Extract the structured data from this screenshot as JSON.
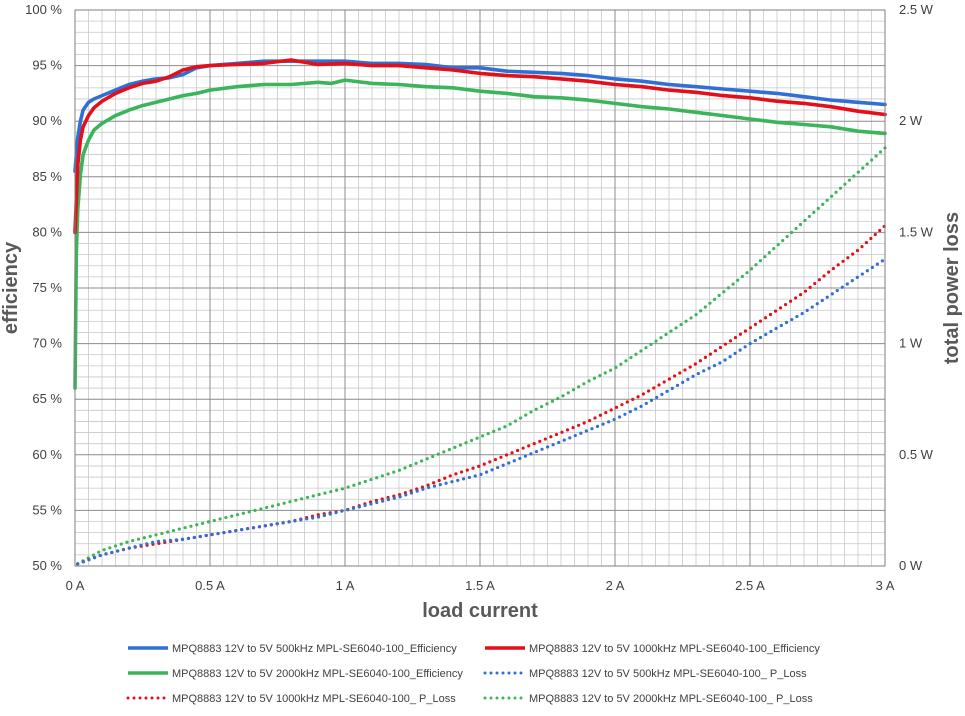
{
  "chart_data": {
    "type": "line",
    "title": "",
    "xlabel": "load current",
    "ylabel_left": "efficiency",
    "ylabel_right": "total power loss",
    "xlim": [
      0,
      3
    ],
    "ylim_left": [
      50,
      100
    ],
    "ylim_right": [
      0,
      2.5
    ],
    "grid": true,
    "legend_position": "bottom",
    "x_ticks": [
      {
        "value": 0,
        "label": "0 A"
      },
      {
        "value": 0.5,
        "label": "0.5 A"
      },
      {
        "value": 1,
        "label": "1 A"
      },
      {
        "value": 1.5,
        "label": "1.5 A"
      },
      {
        "value": 2,
        "label": "2 A"
      },
      {
        "value": 2.5,
        "label": "2.5 A"
      },
      {
        "value": 3,
        "label": "3 A"
      }
    ],
    "y_left_ticks": [
      {
        "value": 50,
        "label": "50 %"
      },
      {
        "value": 55,
        "label": "55 %"
      },
      {
        "value": 60,
        "label": "60 %"
      },
      {
        "value": 65,
        "label": "65 %"
      },
      {
        "value": 70,
        "label": "70 %"
      },
      {
        "value": 75,
        "label": "75 %"
      },
      {
        "value": 80,
        "label": "80 %"
      },
      {
        "value": 85,
        "label": "85 %"
      },
      {
        "value": 90,
        "label": "90 %"
      },
      {
        "value": 95,
        "label": "95 %"
      },
      {
        "value": 100,
        "label": "100 %"
      }
    ],
    "y_right_ticks": [
      {
        "value": 0,
        "label": "0 W"
      },
      {
        "value": 0.5,
        "label": "0.5 W"
      },
      {
        "value": 1,
        "label": "1 W"
      },
      {
        "value": 1.5,
        "label": "1.5 W"
      },
      {
        "value": 2,
        "label": "2 W"
      },
      {
        "value": 2.5,
        "label": "2.5 W"
      }
    ],
    "series": [
      {
        "name": "MPQ8883 12V to 5V 500kHz MPL-SE6040-100_Efficiency",
        "axis": "left",
        "color": "#2f6fd6",
        "style": "solid",
        "x": [
          0,
          0.01,
          0.02,
          0.03,
          0.05,
          0.07,
          0.1,
          0.15,
          0.2,
          0.25,
          0.3,
          0.35,
          0.4,
          0.45,
          0.5,
          0.6,
          0.7,
          0.8,
          0.9,
          1.0,
          1.1,
          1.2,
          1.3,
          1.4,
          1.5,
          1.6,
          1.7,
          1.8,
          1.9,
          2.0,
          2.1,
          2.2,
          2.3,
          2.4,
          2.5,
          2.6,
          2.7,
          2.8,
          2.9,
          3.0
        ],
        "y": [
          85.5,
          88.5,
          90.0,
          91.0,
          91.7,
          92.0,
          92.3,
          92.8,
          93.3,
          93.6,
          93.8,
          93.9,
          94.2,
          94.8,
          95.0,
          95.2,
          95.4,
          95.4,
          95.4,
          95.4,
          95.2,
          95.2,
          95.1,
          94.8,
          94.8,
          94.5,
          94.4,
          94.3,
          94.1,
          93.8,
          93.6,
          93.3,
          93.1,
          92.9,
          92.7,
          92.5,
          92.2,
          91.9,
          91.7,
          91.5
        ]
      },
      {
        "name": "MPQ8883 12V to 5V 1000kHz MPL-SE6040-100_Efficiency",
        "axis": "left",
        "color": "#e3101a",
        "style": "solid",
        "x": [
          0,
          0.01,
          0.02,
          0.03,
          0.05,
          0.07,
          0.1,
          0.15,
          0.2,
          0.25,
          0.3,
          0.35,
          0.4,
          0.45,
          0.5,
          0.6,
          0.7,
          0.8,
          0.9,
          1.0,
          1.1,
          1.2,
          1.3,
          1.4,
          1.5,
          1.6,
          1.7,
          1.8,
          1.9,
          2.0,
          2.1,
          2.2,
          2.3,
          2.4,
          2.5,
          2.6,
          2.7,
          2.8,
          2.9,
          3.0
        ],
        "y": [
          80.0,
          86.0,
          88.3,
          89.5,
          90.5,
          91.2,
          91.8,
          92.5,
          93.0,
          93.4,
          93.6,
          94.0,
          94.6,
          94.9,
          95.0,
          95.1,
          95.2,
          95.5,
          95.1,
          95.2,
          95.0,
          95.0,
          94.8,
          94.6,
          94.3,
          94.1,
          94.0,
          93.8,
          93.6,
          93.3,
          93.1,
          92.8,
          92.6,
          92.3,
          92.1,
          91.8,
          91.6,
          91.3,
          90.9,
          90.6
        ]
      },
      {
        "name": "MPQ8883 12V to 5V 2000kHz MPL-SE6040-100_Efficiency",
        "axis": "left",
        "color": "#3cb45c",
        "style": "solid",
        "x": [
          0,
          0.005,
          0.01,
          0.02,
          0.03,
          0.05,
          0.07,
          0.1,
          0.15,
          0.2,
          0.25,
          0.3,
          0.35,
          0.4,
          0.45,
          0.5,
          0.6,
          0.7,
          0.8,
          0.9,
          0.95,
          1.0,
          1.1,
          1.2,
          1.3,
          1.4,
          1.5,
          1.6,
          1.7,
          1.8,
          1.9,
          2.0,
          2.1,
          2.2,
          2.3,
          2.4,
          2.5,
          2.6,
          2.7,
          2.8,
          2.9,
          3.0
        ],
        "y": [
          66.0,
          78.0,
          82.0,
          85.2,
          87.0,
          88.3,
          89.2,
          89.8,
          90.5,
          91.0,
          91.4,
          91.7,
          92.0,
          92.3,
          92.5,
          92.8,
          93.1,
          93.3,
          93.3,
          93.5,
          93.4,
          93.7,
          93.4,
          93.3,
          93.1,
          93.0,
          92.7,
          92.5,
          92.2,
          92.1,
          91.9,
          91.6,
          91.3,
          91.1,
          90.8,
          90.5,
          90.2,
          89.9,
          89.7,
          89.5,
          89.1,
          88.9
        ]
      },
      {
        "name": "MPQ8883 12V to 5V 500kHz MPL-SE6040-100_ P_Loss",
        "axis": "right",
        "color": "#2f6fd6",
        "style": "dotted",
        "x": [
          0.01,
          0.1,
          0.2,
          0.3,
          0.4,
          0.5,
          0.6,
          0.7,
          0.8,
          0.9,
          1.0,
          1.1,
          1.2,
          1.3,
          1.4,
          1.5,
          1.6,
          1.7,
          1.8,
          1.9,
          2.0,
          2.1,
          2.2,
          2.3,
          2.4,
          2.5,
          2.6,
          2.7,
          2.8,
          2.9,
          3.0
        ],
        "y": [
          0.01,
          0.05,
          0.08,
          0.11,
          0.12,
          0.14,
          0.16,
          0.18,
          0.2,
          0.22,
          0.25,
          0.28,
          0.31,
          0.35,
          0.38,
          0.41,
          0.46,
          0.51,
          0.56,
          0.61,
          0.66,
          0.72,
          0.79,
          0.86,
          0.92,
          1.0,
          1.07,
          1.14,
          1.22,
          1.3,
          1.38
        ]
      },
      {
        "name": "MPQ8883 12V to 5V 1000kHz MPL-SE6040-100_ P_Loss",
        "axis": "right",
        "color": "#e3101a",
        "style": "dotted",
        "x": [
          0.01,
          0.1,
          0.2,
          0.3,
          0.4,
          0.5,
          0.6,
          0.7,
          0.8,
          0.9,
          1.0,
          1.1,
          1.2,
          1.3,
          1.4,
          1.5,
          1.6,
          1.7,
          1.8,
          1.9,
          2.0,
          2.1,
          2.2,
          2.3,
          2.4,
          2.5,
          2.6,
          2.7,
          2.8,
          2.9,
          3.0
        ],
        "y": [
          0.01,
          0.05,
          0.08,
          0.1,
          0.12,
          0.14,
          0.16,
          0.18,
          0.2,
          0.23,
          0.25,
          0.29,
          0.32,
          0.36,
          0.41,
          0.45,
          0.5,
          0.55,
          0.6,
          0.65,
          0.71,
          0.77,
          0.84,
          0.91,
          0.99,
          1.07,
          1.15,
          1.23,
          1.33,
          1.42,
          1.53
        ]
      },
      {
        "name": "MPQ8883 12V to 5V 2000kHz MPL-SE6040-100_ P_Loss",
        "axis": "right",
        "color": "#3cb45c",
        "style": "dotted",
        "x": [
          0.01,
          0.1,
          0.2,
          0.3,
          0.4,
          0.5,
          0.6,
          0.7,
          0.8,
          0.9,
          1.0,
          1.1,
          1.2,
          1.3,
          1.4,
          1.5,
          1.6,
          1.7,
          1.8,
          1.9,
          2.0,
          2.1,
          2.2,
          2.3,
          2.4,
          2.5,
          2.6,
          2.7,
          2.8,
          2.9,
          3.0
        ],
        "y": [
          0.01,
          0.07,
          0.11,
          0.14,
          0.17,
          0.2,
          0.23,
          0.26,
          0.29,
          0.32,
          0.35,
          0.39,
          0.43,
          0.48,
          0.53,
          0.58,
          0.63,
          0.7,
          0.76,
          0.83,
          0.89,
          0.97,
          1.05,
          1.13,
          1.23,
          1.33,
          1.44,
          1.55,
          1.66,
          1.77,
          1.88
        ]
      }
    ]
  }
}
